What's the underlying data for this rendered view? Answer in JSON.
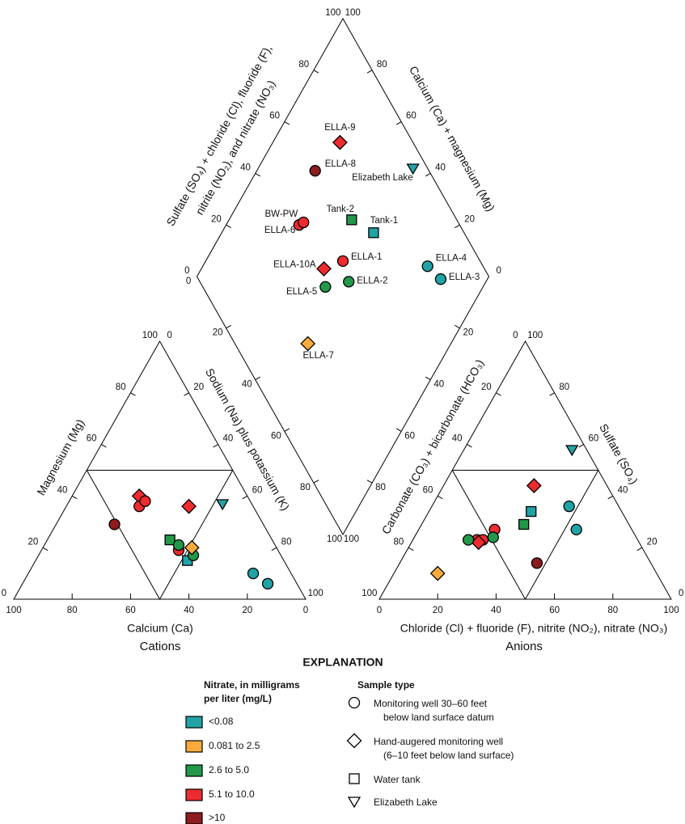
{
  "chart_data": {
    "type": "piper",
    "cation_triangle": {
      "title": "Cations",
      "axes": {
        "calcium": {
          "label": "Calcium (Ca)",
          "ticks": [
            0,
            20,
            40,
            60,
            80,
            100
          ]
        },
        "magnesium": {
          "label": "Magnesium (Mg)",
          "ticks": [
            0,
            20,
            40,
            60,
            80,
            100
          ]
        },
        "sodium_potassium": {
          "label": "Sodium (Na) plus potassium (K)",
          "ticks": [
            0,
            20,
            40,
            60,
            80,
            100
          ]
        }
      }
    },
    "anion_triangle": {
      "title": "Anions",
      "axes": {
        "chloride": {
          "label": "Chloride (Cl) + fluoride (F), nitrite (NO₂), nitrate (NO₃)",
          "ticks": [
            0,
            20,
            40,
            60,
            80,
            100
          ]
        },
        "sulfate": {
          "label": "Sulfate (SO₄)",
          "ticks": [
            0,
            20,
            40,
            60,
            80,
            100
          ]
        },
        "carbonate_bicarbonate": {
          "label": "Carbonate (CO₃) + bicarbonate (HCO₃)",
          "ticks": [
            0,
            20,
            40,
            60,
            80,
            100
          ]
        }
      }
    },
    "diamond": {
      "axes": {
        "sulfate_chloride": {
          "label": [
            "Sulfate (SO₄) + chloride (Cl), fluoride (F),",
            "nitrite (NO₂), and nitrate (NO₃)"
          ],
          "ticks": [
            0,
            20,
            40,
            60,
            80,
            100
          ]
        },
        "calcium_magnesium": {
          "label": [
            "Calcium (Ca) + magnesium (Mg)"
          ],
          "ticks": [
            0,
            20,
            40,
            60,
            80,
            100
          ]
        },
        "sodium_potassium": {
          "ticks": [
            0,
            20,
            40,
            60,
            80,
            100
          ]
        },
        "carbonate_bicarbonate": {
          "ticks": [
            20,
            40,
            60,
            80,
            100
          ]
        }
      }
    },
    "samples": [
      {
        "name": "ELLA-9",
        "nitrate_class": 3,
        "sample_type": 1,
        "magnesium": 40,
        "sodium_potassium": 23,
        "sulfate": 44,
        "chloride": 31
      },
      {
        "name": "ELLA-8",
        "nitrate_class": 4,
        "sample_type": 0,
        "magnesium": 29,
        "sodium_potassium": 20,
        "sulfate": 14,
        "chloride": 47
      },
      {
        "name": "Elizabeth Lake",
        "nitrate_class": 0,
        "sample_type": 3,
        "magnesium": 37,
        "sodium_potassium": 53,
        "sulfate": 58,
        "chloride": 37
      },
      {
        "name": "BW-PW",
        "nitrate_class": 3,
        "sample_type": 0,
        "magnesium": 36,
        "sodium_potassium": 25,
        "sulfate": 23,
        "chloride": 22
      },
      {
        "name": "ELLA-6",
        "nitrate_class": 3,
        "sample_type": 0,
        "magnesium": 38,
        "sodium_potassium": 26,
        "sulfate": 23,
        "chloride": 24
      },
      {
        "name": "Tank-2",
        "nitrate_class": 2,
        "sample_type": 2,
        "magnesium": 23,
        "sodium_potassium": 42,
        "sulfate": 29,
        "chloride": 35
      },
      {
        "name": "Tank-1",
        "nitrate_class": 0,
        "sample_type": 2,
        "magnesium": 15,
        "sodium_potassium": 52,
        "sulfate": 34,
        "chloride": 35
      },
      {
        "name": "ELLA-1",
        "nitrate_class": 3,
        "sample_type": 0,
        "magnesium": 19,
        "sodium_potassium": 47,
        "sulfate": 27,
        "chloride": 26
      },
      {
        "name": "ELLA-10A",
        "nitrate_class": 3,
        "sample_type": 1,
        "magnesium": 36,
        "sodium_potassium": 42,
        "sulfate": 22,
        "chloride": 23
      },
      {
        "name": "ELLA-4",
        "nitrate_class": 0,
        "sample_type": 0,
        "magnesium": 10,
        "sodium_potassium": 77,
        "sulfate": 27,
        "chloride": 54
      },
      {
        "name": "ELLA-3",
        "nitrate_class": 0,
        "sample_type": 0,
        "magnesium": 6,
        "sodium_potassium": 84,
        "sulfate": 36,
        "chloride": 47
      },
      {
        "name": "ELLA-2",
        "nitrate_class": 2,
        "sample_type": 0,
        "magnesium": 17,
        "sodium_potassium": 53,
        "sulfate": 24,
        "chloride": 27
      },
      {
        "name": "ELLA-5",
        "nitrate_class": 2,
        "sample_type": 0,
        "magnesium": 21,
        "sodium_potassium": 46,
        "sulfate": 23,
        "chloride": 19
      },
      {
        "name": "ELLA-7",
        "nitrate_class": 1,
        "sample_type": 1,
        "magnesium": 20,
        "sodium_potassium": 51,
        "sulfate": 10,
        "chloride": 15
      }
    ],
    "explanation": {
      "title": "EXPLANATION",
      "nitrate_classes": {
        "title": [
          "Nitrate, in milligrams",
          "per liter (mg/L)"
        ],
        "items": [
          {
            "label": "<0.08",
            "color": "#22a3a6"
          },
          {
            "label": "0.081 to 2.5",
            "color": "#f8ab3c"
          },
          {
            "label": "2.6 to 5.0",
            "color": "#23984a"
          },
          {
            "label": "5.1 to 10.0",
            "color": "#ee2b2f"
          },
          {
            "label": ">10",
            "color": "#8e1b1e"
          }
        ]
      },
      "sample_types": {
        "title": "Sample type",
        "items": [
          {
            "label": [
              "Monitoring well 30–60 feet",
              "below land surface datum"
            ],
            "shape": "circle"
          },
          {
            "label": [
              "Hand-augered monitoring well",
              "(6–10 feet below land surface)"
            ],
            "shape": "diamond"
          },
          {
            "label": [
              "Water tank"
            ],
            "shape": "square"
          },
          {
            "label": [
              "Elizabeth Lake"
            ],
            "shape": "triangle"
          }
        ]
      }
    }
  }
}
